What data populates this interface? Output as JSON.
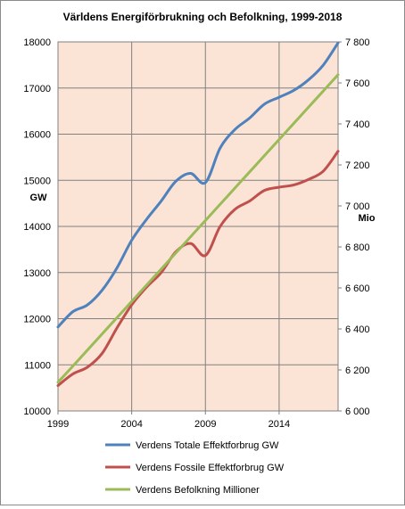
{
  "chart_data": {
    "type": "line",
    "title": "Världens Energiförbrukning och Befolkning, 1999-2018",
    "x": [
      1999,
      2000,
      2001,
      2002,
      2003,
      2004,
      2005,
      2006,
      2007,
      2008,
      2009,
      2010,
      2011,
      2012,
      2013,
      2014,
      2015,
      2016,
      2017,
      2018
    ],
    "x_ticks": [
      "1999",
      "2004",
      "2009",
      "2014"
    ],
    "xlim": [
      1999,
      2018
    ],
    "y_left": {
      "unit": "GW",
      "ylim": [
        10000,
        18000
      ],
      "ticks": [
        "10000",
        "11000",
        "12000",
        "13000",
        "14000",
        "15000",
        "16000",
        "17000",
        "18000"
      ]
    },
    "y_right": {
      "unit": "Mio",
      "ylim": [
        6000,
        7800
      ],
      "ticks": [
        "6 000",
        "6 200",
        "6 400",
        "6 600",
        "6 800",
        "7 000",
        "7 200",
        "7 400",
        "7 600",
        "7 800"
      ]
    },
    "series": [
      {
        "name": "Verdens Totale Effektforbrug GW",
        "axis": "left",
        "color": "#4f81bd",
        "values": [
          11820,
          12150,
          12300,
          12620,
          13100,
          13700,
          14150,
          14550,
          14980,
          15150,
          14950,
          15700,
          16100,
          16350,
          16650,
          16800,
          16950,
          17180,
          17500,
          17980
        ]
      },
      {
        "name": "Verdens Fossile Effektforbrug GW",
        "axis": "left",
        "color": "#c0504d",
        "values": [
          10550,
          10800,
          10950,
          11250,
          11800,
          12300,
          12680,
          13000,
          13450,
          13630,
          13370,
          14000,
          14370,
          14550,
          14780,
          14850,
          14900,
          15020,
          15200,
          15630
        ]
      },
      {
        "name": "Verdens Befolkning Millioner",
        "axis": "right",
        "color": "#9bbb59",
        "values": [
          6140,
          6218,
          6297,
          6376,
          6455,
          6534,
          6613,
          6692,
          6771,
          6850,
          6929,
          7008,
          7087,
          7166,
          7245,
          7324,
          7403,
          7482,
          7561,
          7640
        ]
      }
    ],
    "grid": true,
    "legend_position": "bottom"
  },
  "colors": {
    "plot_background": "#fbe4d5",
    "grid": "#808080"
  }
}
